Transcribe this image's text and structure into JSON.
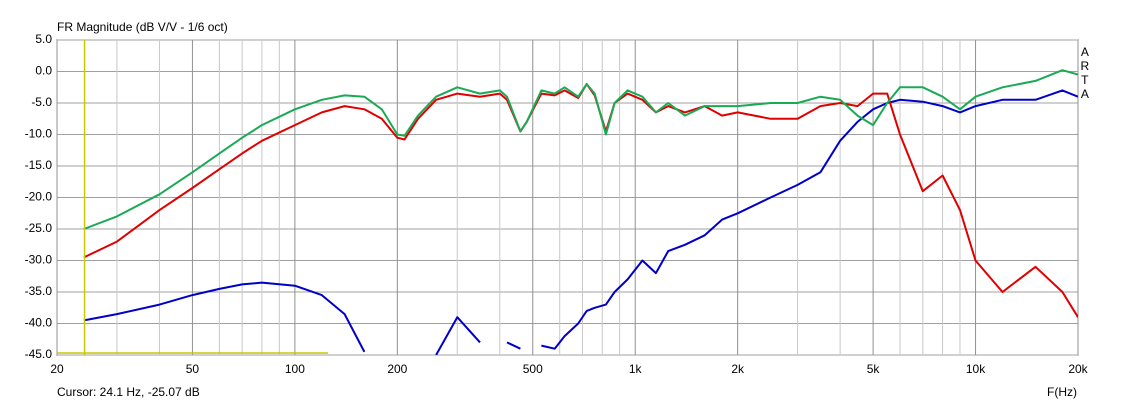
{
  "chart_data": {
    "type": "line",
    "title": "FR Magnitude (dB V/V - 1/6 oct)",
    "watermark": "ARTA",
    "xlabel": "F(Hz)",
    "cursor_label": "Cursor: 24.1 Hz, -25.07 dB",
    "cursor_x": 24.1,
    "log_x": true,
    "grid": true,
    "xlim": [
      20,
      20000
    ],
    "ylim": [
      -45,
      5
    ],
    "xticks": [
      20,
      50,
      100,
      200,
      500,
      {
        "value": 1000,
        "label": "1k"
      },
      {
        "value": 2000,
        "label": "2k"
      },
      {
        "value": 5000,
        "label": "5k"
      },
      {
        "value": 10000,
        "label": "10k"
      },
      {
        "value": 20000,
        "label": "20k"
      }
    ],
    "xminor_ticks": [
      30,
      40,
      60,
      70,
      80,
      90,
      300,
      400,
      600,
      700,
      800,
      900,
      3000,
      4000,
      6000,
      7000,
      8000,
      9000
    ],
    "yticks": [
      {
        "value": 5,
        "label": "5.0"
      },
      {
        "value": 0,
        "label": "0.0"
      },
      {
        "value": -5,
        "label": "-5.0"
      },
      {
        "value": -10,
        "label": "-10.0"
      },
      {
        "value": -15,
        "label": "-15.0"
      },
      {
        "value": -20,
        "label": "-20.0"
      },
      {
        "value": -25,
        "label": "-25.0"
      },
      {
        "value": -30,
        "label": "-30.0"
      },
      {
        "value": -35,
        "label": "-35.0"
      },
      {
        "value": -40,
        "label": "-40.0"
      },
      {
        "value": -45,
        "label": "-45.0"
      }
    ],
    "x": [
      24,
      30,
      40,
      50,
      60,
      70,
      80,
      100,
      120,
      140,
      160,
      180,
      200,
      210,
      230,
      260,
      300,
      350,
      400,
      420,
      460,
      480,
      530,
      580,
      620,
      680,
      720,
      760,
      820,
      870,
      950,
      1050,
      1150,
      1250,
      1400,
      1600,
      1800,
      2000,
      2500,
      3000,
      3500,
      4000,
      4500,
      5000,
      5500,
      6000,
      7000,
      8000,
      9000,
      10000,
      12000,
      15000,
      18000,
      20000
    ],
    "series": [
      {
        "color": "#0000c8",
        "values": [
          -39.5,
          -38.5,
          -37,
          -35.5,
          -34.5,
          -33.8,
          -33.5,
          -34,
          -35.5,
          -38.5,
          -44.5,
          null,
          null,
          null,
          null,
          -45,
          -39,
          -43,
          null,
          -43,
          -44,
          null,
          -43.5,
          -44,
          -42,
          -40,
          -38,
          -37.5,
          -37,
          -35,
          -33,
          -30,
          -32,
          -28.5,
          -27.5,
          -26,
          -23.5,
          -22.5,
          -20,
          -18,
          -16,
          -11,
          -8,
          -6,
          -5,
          -4.5,
          -4.8,
          -5.5,
          -6.5,
          -5.5,
          -4.5,
          -4.5,
          -3,
          -4
        ]
      },
      {
        "color": "#e00000",
        "values": [
          -29.5,
          -27,
          -22,
          -18.5,
          -15.5,
          -13,
          -11,
          -8.5,
          -6.5,
          -5.5,
          -6,
          -7.5,
          -10.5,
          -10.8,
          -7.5,
          -4.5,
          -3.5,
          -4,
          -3.5,
          -4.5,
          -9.5,
          -8,
          -3.5,
          -3.8,
          -3,
          -4.2,
          -2,
          -3.8,
          -9.5,
          -5,
          -3.5,
          -4.5,
          -6.5,
          -5.5,
          -6.5,
          -5.5,
          -7,
          -6.5,
          -7.5,
          -7.5,
          -5.5,
          -5,
          -5.5,
          -3.5,
          -3.5,
          -10,
          -19,
          -16.5,
          -22,
          -30,
          -35,
          -31,
          -35,
          -39
        ]
      },
      {
        "color": "#1aaa55",
        "values": [
          -25,
          -23,
          -19.5,
          -16,
          -13,
          -10.5,
          -8.5,
          -6,
          -4.5,
          -3.8,
          -4,
          -6,
          -10,
          -10.2,
          -7,
          -4,
          -2.5,
          -3.5,
          -3,
          -4,
          -9.5,
          -8,
          -3,
          -3.5,
          -2.5,
          -4,
          -2,
          -3.5,
          -10,
          -5,
          -3,
          -4,
          -6.5,
          -5,
          -7,
          -5.5,
          -5.5,
          -5.5,
          -5,
          -5,
          -4,
          -4.5,
          -7,
          -8.5,
          -5,
          -2.5,
          -2.5,
          -4,
          -6,
          -4,
          -2.5,
          -1.5,
          0.2,
          -0.5
        ]
      }
    ]
  }
}
